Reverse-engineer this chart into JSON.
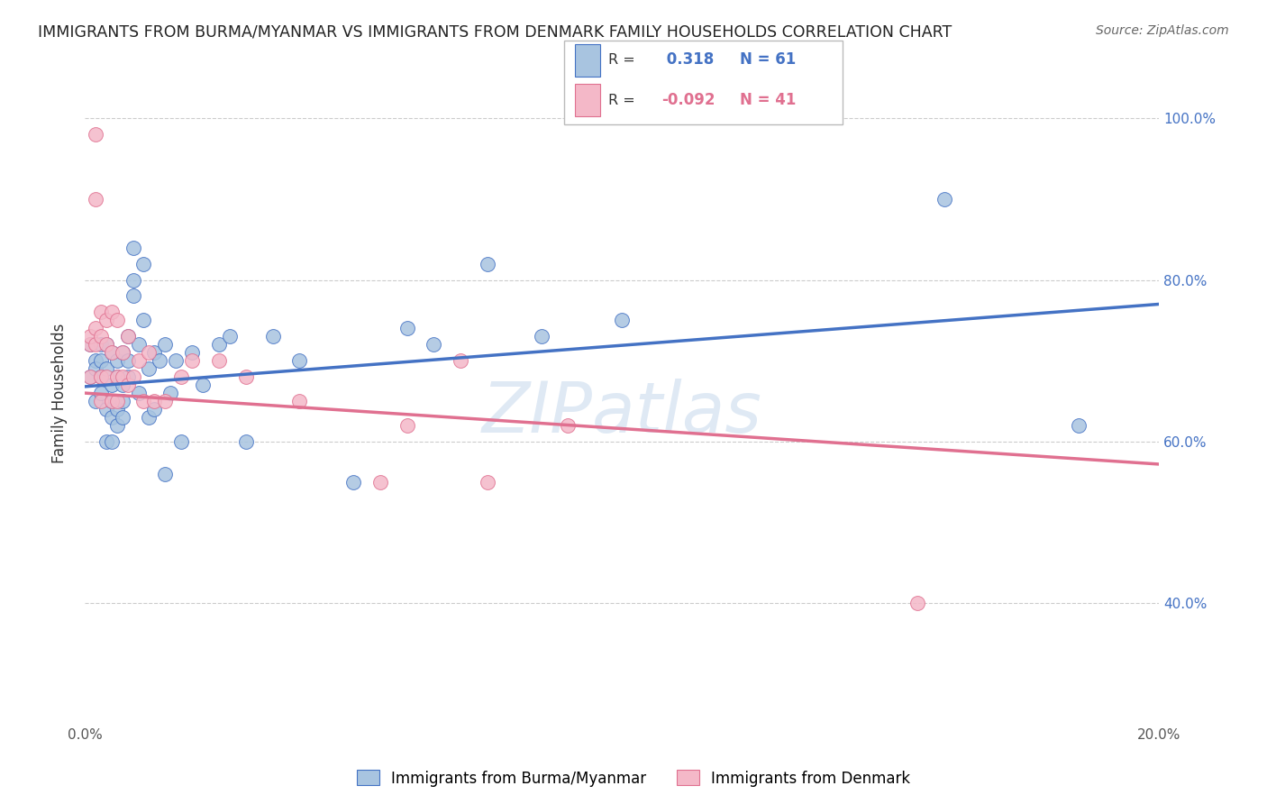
{
  "title": "IMMIGRANTS FROM BURMA/MYANMAR VS IMMIGRANTS FROM DENMARK FAMILY HOUSEHOLDS CORRELATION CHART",
  "source": "Source: ZipAtlas.com",
  "ylabel": "Family Households",
  "legend_labels": [
    "Immigrants from Burma/Myanmar",
    "Immigrants from Denmark"
  ],
  "R_burma": 0.318,
  "N_burma": 61,
  "R_denmark": -0.092,
  "N_denmark": 41,
  "burma_color": "#a8c4e0",
  "denmark_color": "#f4b8c8",
  "burma_line_color": "#4472c4",
  "denmark_line_color": "#e07090",
  "watermark": "ZIPatlas",
  "xlim": [
    0.0,
    0.2
  ],
  "ylim": [
    0.25,
    1.07
  ],
  "burma_trendline": [
    0.668,
    0.77
  ],
  "denmark_trendline": [
    0.66,
    0.572
  ],
  "burma_x": [
    0.001,
    0.001,
    0.002,
    0.002,
    0.002,
    0.003,
    0.003,
    0.003,
    0.003,
    0.004,
    0.004,
    0.004,
    0.004,
    0.005,
    0.005,
    0.005,
    0.005,
    0.005,
    0.006,
    0.006,
    0.006,
    0.006,
    0.007,
    0.007,
    0.007,
    0.007,
    0.008,
    0.008,
    0.008,
    0.009,
    0.009,
    0.009,
    0.01,
    0.01,
    0.011,
    0.011,
    0.012,
    0.012,
    0.013,
    0.013,
    0.014,
    0.015,
    0.015,
    0.016,
    0.017,
    0.018,
    0.02,
    0.022,
    0.025,
    0.027,
    0.03,
    0.035,
    0.04,
    0.05,
    0.06,
    0.065,
    0.075,
    0.085,
    0.1,
    0.16,
    0.185
  ],
  "burma_y": [
    0.68,
    0.72,
    0.7,
    0.65,
    0.69,
    0.72,
    0.66,
    0.68,
    0.7,
    0.69,
    0.64,
    0.6,
    0.72,
    0.71,
    0.67,
    0.63,
    0.6,
    0.65,
    0.7,
    0.68,
    0.64,
    0.62,
    0.71,
    0.65,
    0.63,
    0.67,
    0.73,
    0.7,
    0.68,
    0.84,
    0.8,
    0.78,
    0.72,
    0.66,
    0.82,
    0.75,
    0.69,
    0.63,
    0.71,
    0.64,
    0.7,
    0.56,
    0.72,
    0.66,
    0.7,
    0.6,
    0.71,
    0.67,
    0.72,
    0.73,
    0.6,
    0.73,
    0.7,
    0.55,
    0.74,
    0.72,
    0.82,
    0.73,
    0.75,
    0.9,
    0.62
  ],
  "denmark_x": [
    0.001,
    0.001,
    0.001,
    0.002,
    0.002,
    0.002,
    0.002,
    0.003,
    0.003,
    0.003,
    0.003,
    0.004,
    0.004,
    0.004,
    0.005,
    0.005,
    0.005,
    0.006,
    0.006,
    0.006,
    0.007,
    0.007,
    0.008,
    0.008,
    0.009,
    0.01,
    0.011,
    0.012,
    0.013,
    0.015,
    0.018,
    0.02,
    0.025,
    0.03,
    0.04,
    0.055,
    0.06,
    0.07,
    0.075,
    0.09,
    0.155
  ],
  "denmark_y": [
    0.68,
    0.72,
    0.73,
    0.98,
    0.9,
    0.72,
    0.74,
    0.76,
    0.73,
    0.68,
    0.65,
    0.75,
    0.68,
    0.72,
    0.76,
    0.71,
    0.65,
    0.75,
    0.68,
    0.65,
    0.71,
    0.68,
    0.73,
    0.67,
    0.68,
    0.7,
    0.65,
    0.71,
    0.65,
    0.65,
    0.68,
    0.7,
    0.7,
    0.68,
    0.65,
    0.55,
    0.62,
    0.7,
    0.55,
    0.62,
    0.4
  ]
}
